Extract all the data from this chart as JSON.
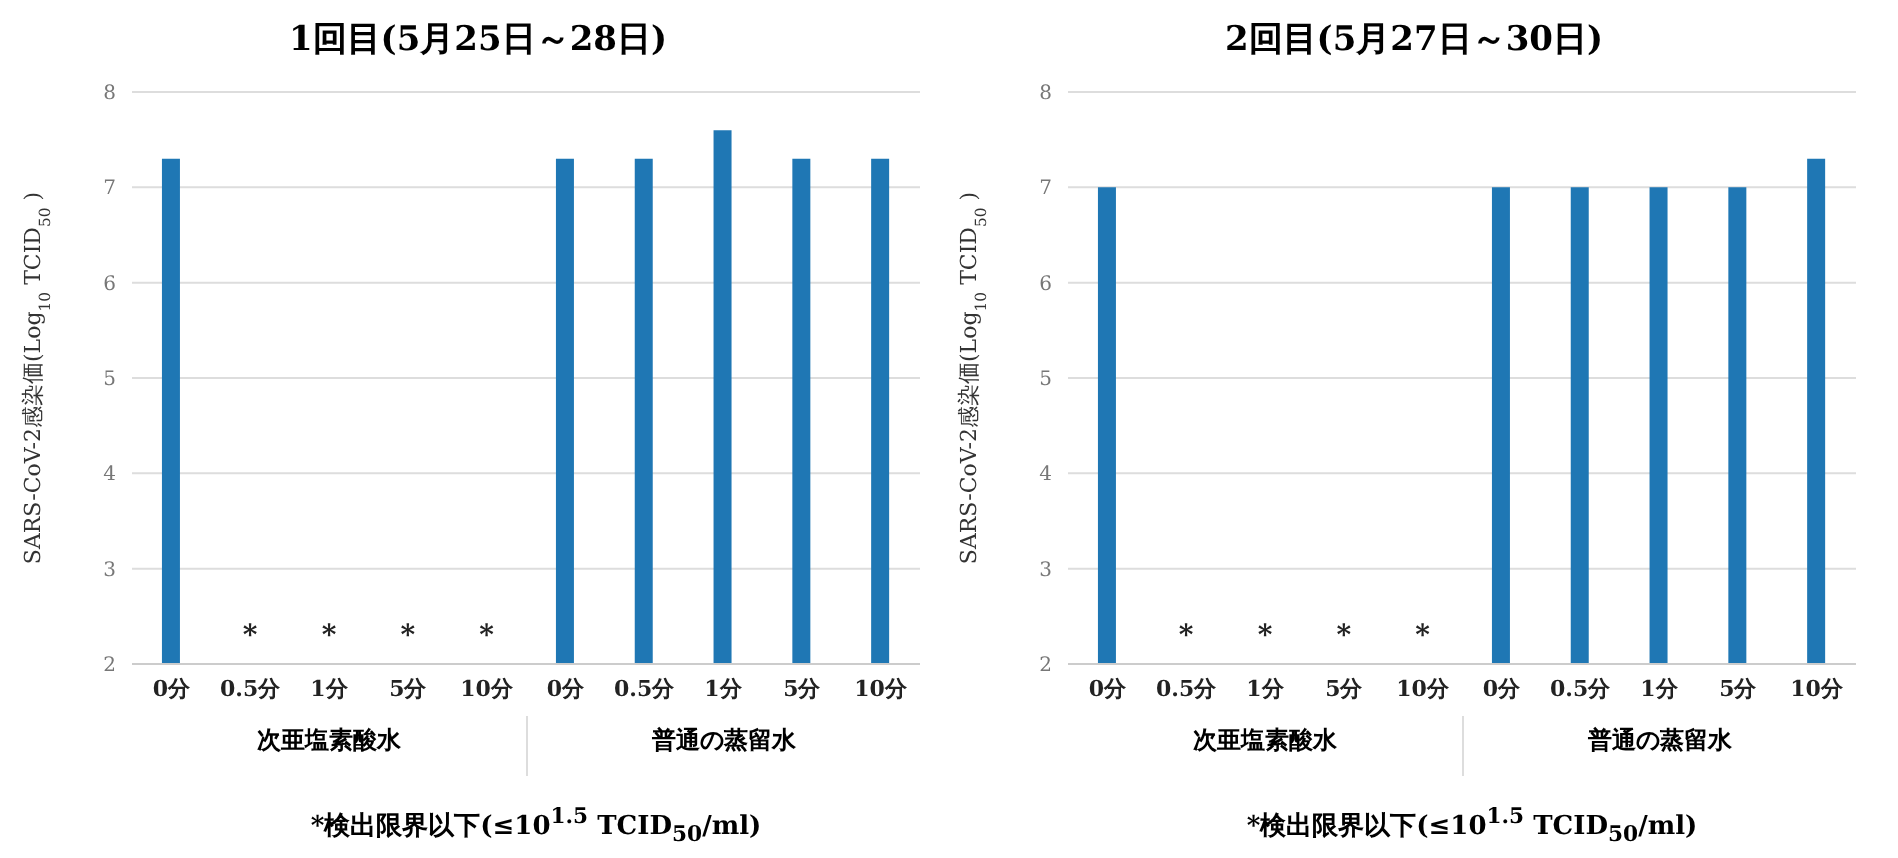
{
  "chart_data": [
    {
      "type": "bar",
      "title": "1回目(5月25日～28日)",
      "ylabel": "SARS-CoV-2感染価(Log$_{10}$ TCID$_{50}$)",
      "categories": [
        "0分",
        "0.5分",
        "1分",
        "5分",
        "10分",
        "0分",
        "0.5分",
        "1分",
        "5分",
        "10分"
      ],
      "values": [
        7.3,
        null,
        null,
        null,
        null,
        7.3,
        7.3,
        7.6,
        7.3,
        7.3
      ],
      "value_labels": [
        null,
        "*",
        "*",
        "*",
        "*",
        null,
        null,
        null,
        null,
        null
      ],
      "color": "#1f77b4",
      "ylim": [
        2,
        8
      ],
      "yticks": [
        2,
        3,
        4,
        5,
        6,
        7,
        8
      ],
      "grid": "y",
      "annotations": [
        "次亜塩素酸水",
        "普通の蒸留水",
        "*検出限界以下(≤10$^{1.5}$ TCID$_{50}$/ml)"
      ]
    },
    {
      "type": "bar",
      "title": "2回目(5月27日～30日)",
      "ylabel": "SARS-CoV-2感染価(Log$_{10}$ TCID$_{50}$)",
      "categories": [
        "0分",
        "0.5分",
        "1分",
        "5分",
        "10分",
        "0分",
        "0.5分",
        "1分",
        "5分",
        "10分"
      ],
      "values": [
        7.0,
        null,
        null,
        null,
        null,
        7.0,
        7.0,
        7.0,
        7.0,
        7.3
      ],
      "value_labels": [
        null,
        "*",
        "*",
        "*",
        "*",
        null,
        null,
        null,
        null,
        null
      ],
      "color": "#1f77b4",
      "ylim": [
        2,
        8
      ],
      "yticks": [
        2,
        3,
        4,
        5,
        6,
        7,
        8
      ],
      "grid": "y",
      "annotations": [
        "次亜塩素酸水",
        "普通の蒸留水",
        "*検出限界以下(≤10$^{1.5}$ TCID$_{50}$/ml)"
      ]
    }
  ]
}
